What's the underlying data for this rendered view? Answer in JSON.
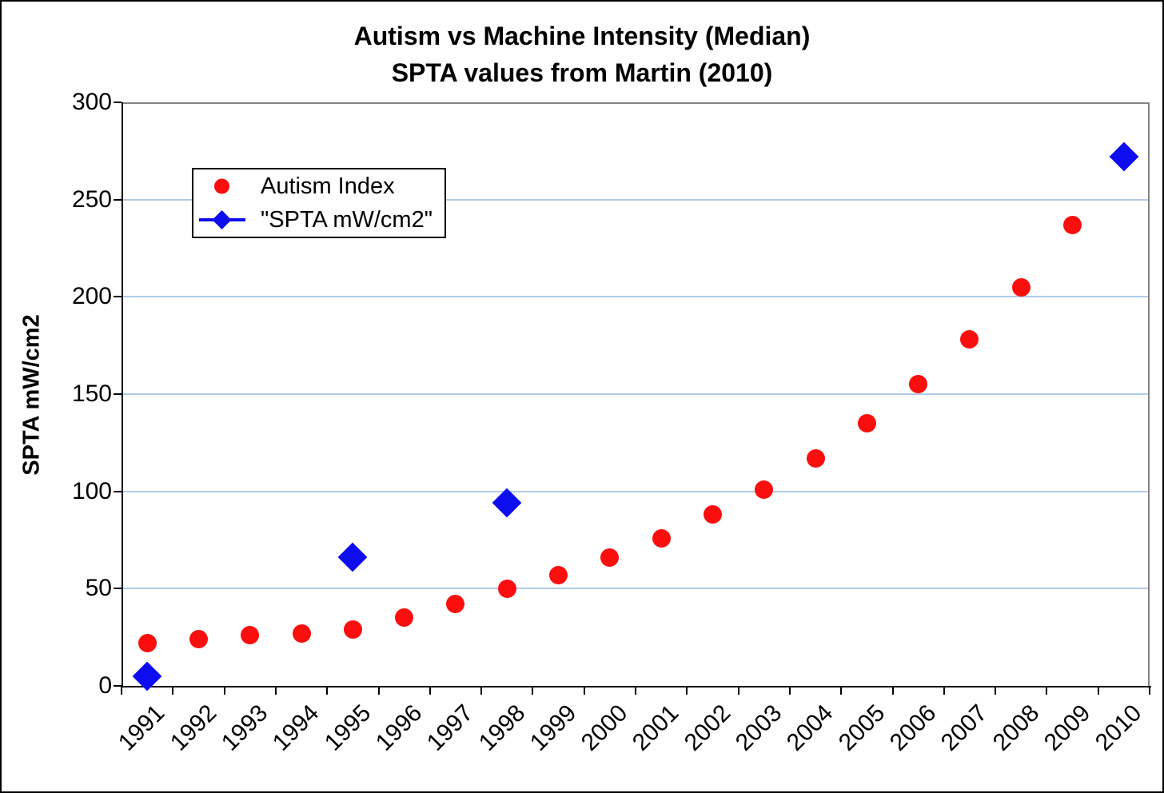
{
  "figure": {
    "title_line1": "Autism vs Machine Intensity (Median)",
    "title_line2": "SPTA values from Martin (2010)"
  },
  "axes": {
    "y_title": "SPTA mW/cm2",
    "y_min": 0,
    "y_max": 300,
    "y_ticks": [
      0,
      50,
      100,
      150,
      200,
      250,
      300
    ],
    "gridline_color": "#AFCBE9",
    "axis_color": "#000000",
    "plot_border_color": "#848484"
  },
  "legend": {
    "items": [
      {
        "label": "Autism Index",
        "marker": "circle",
        "color": "#FB0E0E"
      },
      {
        "label": "\"SPTA mW/cm2\"",
        "marker": "diamond-line",
        "color": "#0D0DF0"
      }
    ]
  },
  "chart_data": {
    "type": "scatter",
    "title": "Autism vs Machine Intensity (Median)",
    "subtitle": "SPTA values from Martin (2010)",
    "xlabel": "",
    "ylabel": "SPTA mW/cm2",
    "ylim": [
      0,
      300
    ],
    "ytick_interval": 50,
    "grid": "horizontal",
    "legend_position": "upper-left-inside",
    "categories": [
      "1991",
      "1992",
      "1993",
      "1994",
      "1995",
      "1996",
      "1997",
      "1998",
      "1999",
      "2000",
      "2001",
      "2002",
      "2003",
      "2004",
      "2005",
      "2006",
      "2007",
      "2008",
      "2009",
      "2010"
    ],
    "series": [
      {
        "name": "Autism Index",
        "marker": "circle",
        "color": "#FB0E0E",
        "values": [
          22,
          24,
          26,
          27,
          29,
          35,
          42,
          50,
          57,
          66,
          76,
          88,
          101,
          117,
          135,
          155,
          178,
          205,
          237,
          null
        ]
      },
      {
        "name": "\"SPTA mW/cm2\"",
        "marker": "diamond",
        "color": "#0D0DF0",
        "values": [
          5,
          null,
          null,
          null,
          66,
          null,
          null,
          94,
          null,
          null,
          null,
          null,
          null,
          null,
          null,
          null,
          null,
          null,
          null,
          272
        ]
      }
    ]
  }
}
